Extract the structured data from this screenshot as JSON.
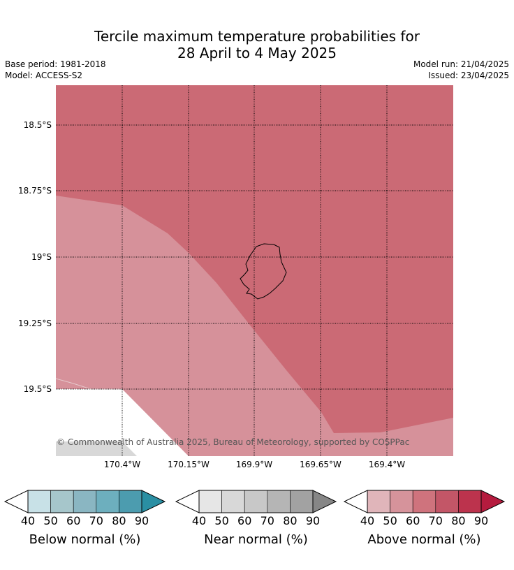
{
  "title": {
    "line1": "Tercile maximum temperature probabilities for",
    "line2": "28 April to 4 May 2025"
  },
  "meta": {
    "base_period": "Base period: 1981-2018",
    "model": "Model: ACCESS-S2",
    "model_run": "Model run: 21/04/2025",
    "issued": "Issued: 23/04/2025"
  },
  "map": {
    "lat_labels": [
      "18.5°S",
      "18.75°S",
      "19°S",
      "19.25°S",
      "19.5°S"
    ],
    "lon_labels": [
      "170.4°W",
      "170.15°W",
      "169.9°W",
      "169.65°W",
      "169.4°W"
    ],
    "copyright": "© Commonwealth of Australia 2025, Bureau of Meteorology, supported by COSPPac",
    "region_colors": {
      "above_60_70": "#cb6a75",
      "above_50_60": "#d6919a",
      "near_50_60": "#d8d8d8",
      "no_category": "#ffffff"
    }
  },
  "legend": {
    "ticks": [
      "40",
      "50",
      "60",
      "70",
      "80",
      "90"
    ],
    "colorbars": [
      {
        "label": "Below normal (%)",
        "colors": [
          "#c8e1e7",
          "#a6c6cb",
          "#8ab6c2",
          "#6dafbe",
          "#4c9caf",
          "#2a8fa3"
        ]
      },
      {
        "label": "Near normal (%)",
        "colors": [
          "#e6e6e6",
          "#d8d8d8",
          "#c8c8c8",
          "#b5b5b5",
          "#a2a2a2",
          "#868686"
        ]
      },
      {
        "label": "Above normal (%)",
        "colors": [
          "#e0b5ba",
          "#d6939b",
          "#cf737d",
          "#c35667",
          "#bc334d",
          "#b51b3e"
        ]
      }
    ]
  }
}
